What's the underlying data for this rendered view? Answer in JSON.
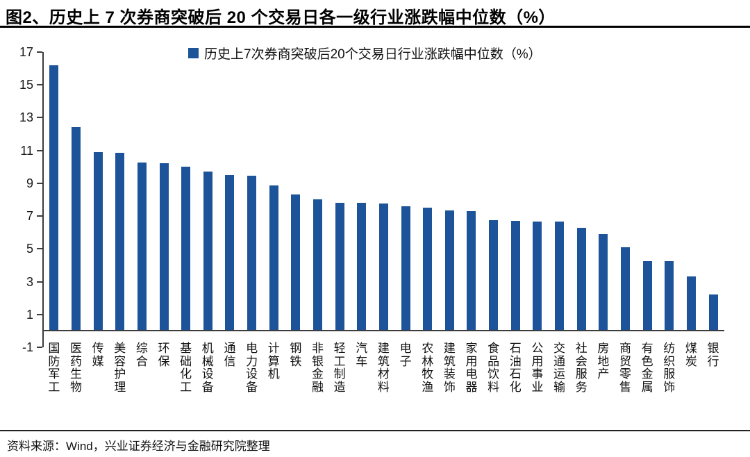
{
  "header": {
    "title_prefix": "图2",
    "title_rest": "、历史上 7 次券商突破后 20 个交易日各一级行业涨跌幅中位数（%）"
  },
  "legend": {
    "label": "历史上7次券商突破后20个交易日行业涨跌幅中位数（%）"
  },
  "footer": {
    "source": "资料来源：Wind，兴业证券经济与金融研究院整理"
  },
  "colors": {
    "bar": "#1D5499",
    "axis": "#3c3c3c",
    "text": "#1a1a1a"
  },
  "chart_data": {
    "type": "bar",
    "title": "历史上 7 次券商突破后 20 个交易日各一级行业涨跌幅中位数（%）",
    "legend": "历史上7次券商突破后20个交易日行业涨跌幅中位数（%）",
    "legend_position": "top-center",
    "grid": false,
    "xlabel": "",
    "ylabel": "",
    "ylim": [
      -1,
      17
    ],
    "yticks": [
      17,
      15,
      13,
      11,
      9,
      7,
      5,
      3,
      1,
      -1
    ],
    "categories": [
      "国防军工",
      "医药生物",
      "传媒",
      "美容护理",
      "综合",
      "环保",
      "基础化工",
      "机械设备",
      "通信",
      "电力设备",
      "计算机",
      "钢铁",
      "非银金融",
      "轻工制造",
      "汽车",
      "建筑材料",
      "电子",
      "农林牧渔",
      "建筑装饰",
      "家用电器",
      "食品饮料",
      "石油石化",
      "公用事业",
      "交通运输",
      "社会服务",
      "房地产",
      "商贸零售",
      "有色金属",
      "纺织服饰",
      "煤炭",
      "银行"
    ],
    "values": [
      16.2,
      12.4,
      10.9,
      10.85,
      10.25,
      10.2,
      10.0,
      9.7,
      9.5,
      9.45,
      8.85,
      8.3,
      8.0,
      7.8,
      7.8,
      7.75,
      7.6,
      7.5,
      7.35,
      7.3,
      6.75,
      6.7,
      6.65,
      6.65,
      6.25,
      5.9,
      5.1,
      4.25,
      4.25,
      3.3,
      2.2
    ]
  }
}
